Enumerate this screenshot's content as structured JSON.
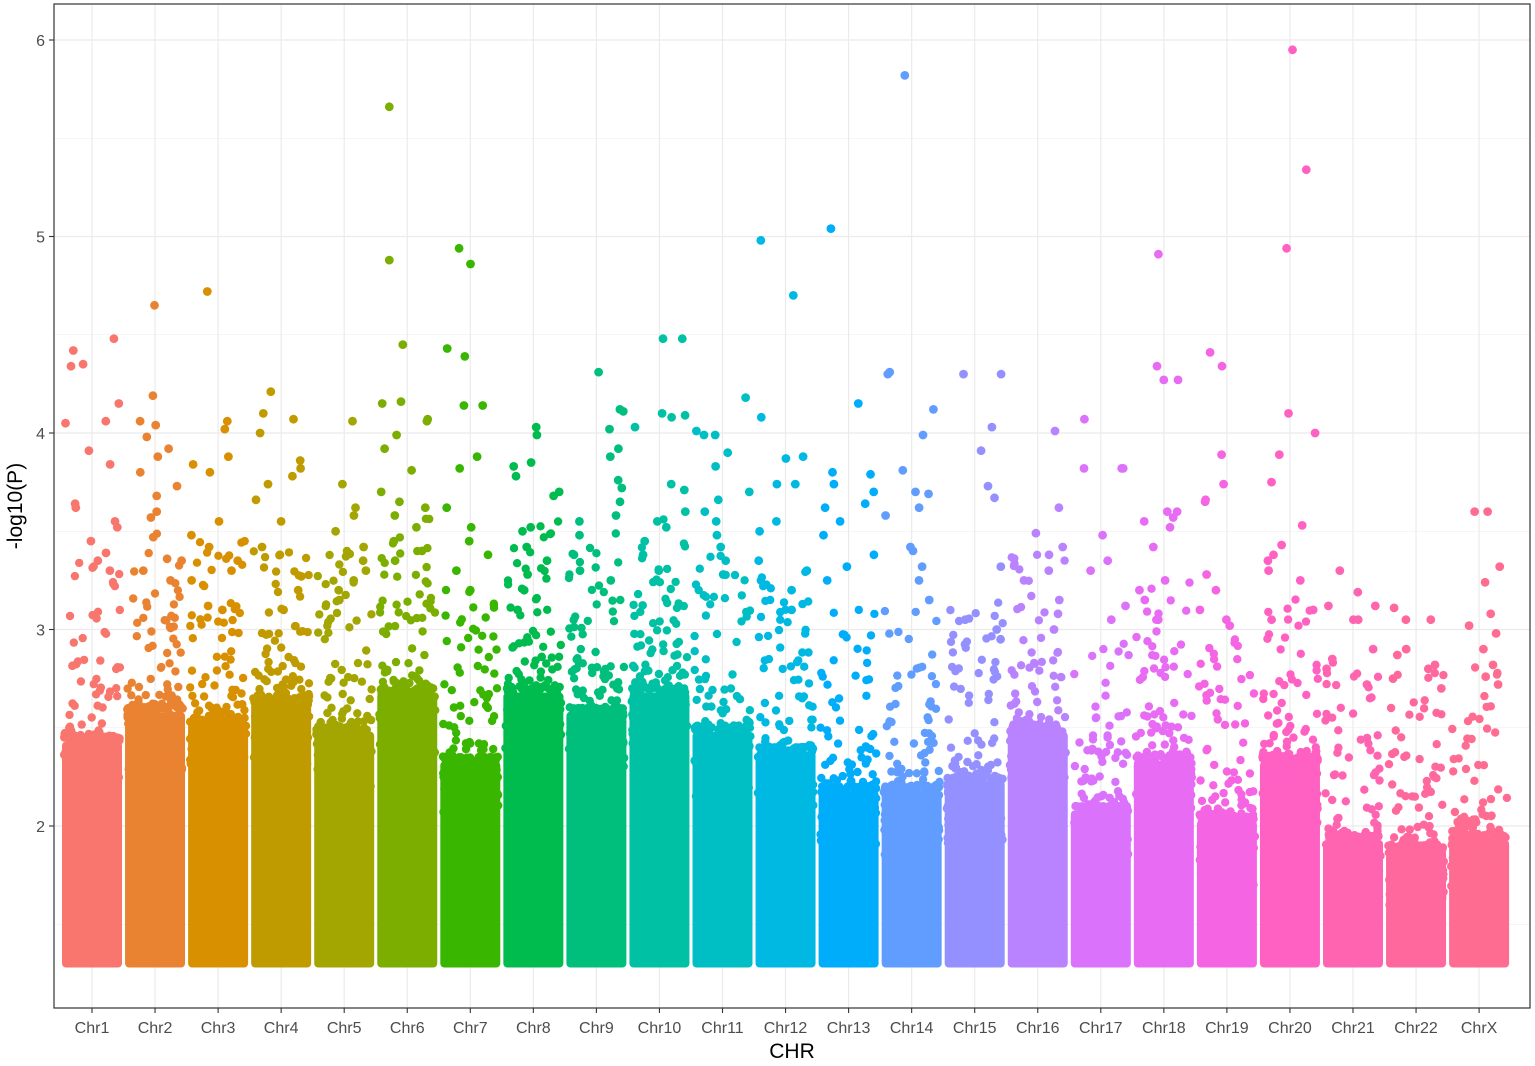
{
  "chart_data": {
    "type": "scatter",
    "subtype": "manhattan",
    "title": "",
    "xlabel": "CHR",
    "ylabel": "-log10(P)",
    "ylim": [
      1.3,
      6.1
    ],
    "y_ticks": [
      2,
      3,
      4,
      5,
      6
    ],
    "grid": true,
    "legend": "none",
    "background": "#ffffff",
    "grid_color": "#ebebeb",
    "panel_border_color": "#333333",
    "point_floor": 1.3,
    "chromosomes": [
      {
        "label": "Chr1",
        "color": "#F8766D",
        "dense_top": 2.45,
        "max": 4.48,
        "top_points": [
          4.48,
          4.42,
          4.35,
          4.34,
          4.15,
          4.06,
          4.05,
          3.91,
          3.84,
          3.64,
          3.62,
          3.55,
          3.52,
          3.45,
          3.39,
          3.35,
          3.3
        ]
      },
      {
        "label": "Chr2",
        "color": "#EA8331",
        "dense_top": 2.6,
        "max": 4.65,
        "top_points": [
          4.65,
          4.19,
          4.06,
          4.04,
          3.98,
          3.92,
          3.88,
          3.8,
          3.73,
          3.68,
          3.6,
          3.57,
          3.47,
          3.36,
          3.35,
          3.3,
          3.25
        ]
      },
      {
        "label": "Chr3",
        "color": "#D89000",
        "dense_top": 2.55,
        "max": 4.72,
        "top_points": [
          4.72,
          4.06,
          4.02,
          3.88,
          3.84,
          3.8,
          3.55,
          3.48,
          3.42,
          3.35,
          3.3,
          3.25,
          3.12,
          3.1
        ]
      },
      {
        "label": "Chr4",
        "color": "#C09B00",
        "dense_top": 2.65,
        "max": 4.21,
        "top_points": [
          4.21,
          4.1,
          4.07,
          4.0,
          3.86,
          3.82,
          3.78,
          3.74,
          3.66,
          3.55,
          3.42,
          3.38,
          3.27,
          3.2,
          3.1
        ]
      },
      {
        "label": "Chr5",
        "color": "#A3A500",
        "dense_top": 2.5,
        "max": 4.06,
        "top_points": [
          4.06,
          3.74,
          3.62,
          3.58,
          3.5,
          3.42,
          3.35,
          3.3,
          3.25,
          3.2,
          3.15
        ]
      },
      {
        "label": "Chr6",
        "color": "#7CAE00",
        "dense_top": 2.7,
        "max": 5.66,
        "top_points": [
          5.66,
          4.88,
          4.45,
          4.16,
          4.15,
          4.07,
          4.06,
          3.99,
          3.92,
          3.81,
          3.7,
          3.65,
          3.62,
          3.58,
          3.52,
          3.45,
          3.4,
          3.35
        ]
      },
      {
        "label": "Chr7",
        "color": "#39B600",
        "dense_top": 2.35,
        "max": 4.94,
        "top_points": [
          4.94,
          4.86,
          4.43,
          4.39,
          4.14,
          4.14,
          3.88,
          3.82,
          3.62,
          3.52,
          3.45,
          3.38,
          3.3,
          3.2
        ]
      },
      {
        "label": "Chr8",
        "color": "#00BB4E",
        "dense_top": 2.7,
        "max": 4.03,
        "top_points": [
          4.03,
          3.99,
          3.85,
          3.83,
          3.78,
          3.7,
          3.68,
          3.52,
          3.5,
          3.42,
          3.35,
          3.28,
          3.2,
          3.1
        ]
      },
      {
        "label": "Chr9",
        "color": "#00BF7D",
        "dense_top": 2.6,
        "max": 4.31,
        "top_points": [
          4.31,
          4.12,
          4.11,
          4.02,
          3.92,
          3.88,
          3.76,
          3.72,
          3.65,
          3.58,
          3.55,
          3.48,
          3.38,
          3.3,
          3.25
        ]
      },
      {
        "label": "Chr10",
        "color": "#00C1A3",
        "dense_top": 2.7,
        "max": 4.48,
        "top_points": [
          4.48,
          4.48,
          4.1,
          4.09,
          4.08,
          4.03,
          3.74,
          3.71,
          3.6,
          3.55,
          3.52,
          3.45,
          3.38,
          3.3
        ]
      },
      {
        "label": "Chr11",
        "color": "#00BFC4",
        "dense_top": 2.5,
        "max": 4.18,
        "top_points": [
          4.18,
          4.01,
          3.99,
          3.99,
          3.9,
          3.83,
          3.7,
          3.66,
          3.6,
          3.55,
          3.48,
          3.42,
          3.35,
          3.28
        ]
      },
      {
        "label": "Chr12",
        "color": "#00B9E3",
        "dense_top": 2.4,
        "max": 4.98,
        "top_points": [
          4.98,
          4.7,
          4.08,
          3.88,
          3.87,
          3.74,
          3.74,
          3.55,
          3.5,
          3.35,
          3.3,
          3.2,
          3.1
        ]
      },
      {
        "label": "Chr13",
        "color": "#00ADFA",
        "dense_top": 2.2,
        "max": 5.04,
        "top_points": [
          5.04,
          4.15,
          3.8,
          3.79,
          3.74,
          3.7,
          3.64,
          3.62,
          3.55,
          3.48,
          3.38,
          3.32,
          3.25
        ]
      },
      {
        "label": "Chr14",
        "color": "#619CFF",
        "dense_top": 2.2,
        "max": 5.82,
        "top_points": [
          5.82,
          4.31,
          4.3,
          4.12,
          3.99,
          3.81,
          3.7,
          3.69,
          3.62,
          3.58,
          3.42,
          3.4,
          3.32,
          3.25,
          3.15
        ]
      },
      {
        "label": "Chr15",
        "color": "#9590FF",
        "dense_top": 2.25,
        "max": 4.3,
        "top_points": [
          4.3,
          4.3,
          4.03,
          3.91,
          3.73,
          3.67,
          3.32,
          3.05,
          3.0,
          2.95
        ]
      },
      {
        "label": "Chr16",
        "color": "#B983FF",
        "dense_top": 2.5,
        "max": 4.01,
        "top_points": [
          4.01,
          3.62,
          3.49,
          3.42,
          3.38,
          3.3,
          3.25,
          3.15,
          3.08,
          3.0
        ]
      },
      {
        "label": "Chr17",
        "color": "#DB72FB",
        "dense_top": 2.1,
        "max": 4.07,
        "top_points": [
          4.07,
          3.82,
          3.82,
          3.82,
          3.48,
          3.35,
          3.3,
          3.12,
          3.05
        ]
      },
      {
        "label": "Chr18",
        "color": "#E76BF3",
        "dense_top": 2.35,
        "max": 4.91,
        "top_points": [
          4.91,
          4.34,
          4.27,
          4.27,
          3.6,
          3.6,
          3.57,
          3.55,
          3.52,
          3.42,
          3.25,
          3.2,
          3.15,
          3.05
        ]
      },
      {
        "label": "Chr19",
        "color": "#F564E3",
        "dense_top": 2.05,
        "max": 4.41,
        "top_points": [
          4.41,
          4.34,
          3.89,
          3.74,
          3.66,
          3.65,
          3.28,
          3.2,
          3.1,
          3.05,
          3.02
        ]
      },
      {
        "label": "Chr20",
        "color": "#FF61C3",
        "dense_top": 2.35,
        "max": 5.95,
        "top_points": [
          5.95,
          5.34,
          4.94,
          4.1,
          4.0,
          3.89,
          3.75,
          3.53,
          3.43,
          3.38,
          3.35,
          3.3,
          3.25,
          3.1,
          3.05
        ]
      },
      {
        "label": "Chr21",
        "color": "#FF64B0",
        "dense_top": 1.95,
        "max": 3.3,
        "top_points": [
          3.3,
          3.19,
          3.12,
          3.12,
          3.05,
          3.05,
          2.9,
          2.85,
          2.8,
          2.72
        ]
      },
      {
        "label": "Chr22",
        "color": "#FF689D",
        "dense_top": 1.9,
        "max": 3.11,
        "top_points": [
          3.11,
          3.05,
          3.05,
          2.9,
          2.87,
          2.82,
          2.8,
          2.75,
          2.7
        ]
      },
      {
        "label": "ChrX",
        "color": "#FF6C91",
        "dense_top": 1.95,
        "max": 3.6,
        "top_points": [
          3.6,
          3.6,
          3.32,
          3.24,
          3.08,
          3.02,
          2.98,
          2.9,
          2.82,
          2.76,
          2.72
        ]
      }
    ]
  }
}
